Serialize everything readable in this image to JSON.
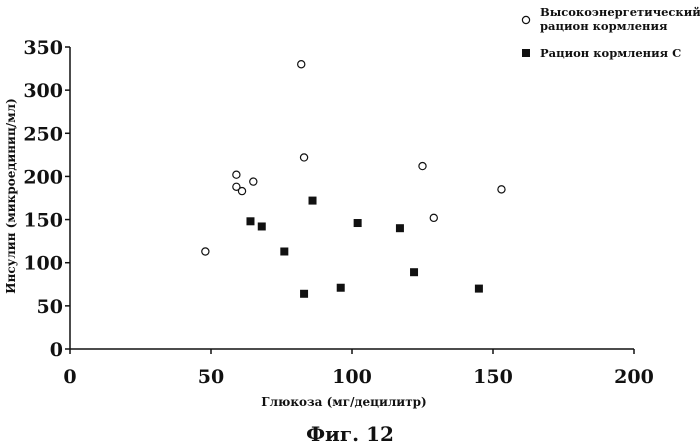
{
  "chart_data": {
    "type": "scatter",
    "xlabel": "Глюкоза (мг/децилитр)",
    "ylabel": "Инсулин (микроединиц/мл)",
    "xlim": [
      0,
      200
    ],
    "ylim": [
      0,
      350
    ],
    "xticks": [
      "0",
      "50",
      "100",
      "150",
      "200"
    ],
    "yticks": [
      "0",
      "50",
      "100",
      "150",
      "200",
      "250",
      "300",
      "350"
    ],
    "xtick_values": [
      0,
      50,
      100,
      150,
      200
    ],
    "ytick_values": [
      0,
      50,
      100,
      150,
      200,
      250,
      300,
      350
    ],
    "grid": false,
    "legend_position": "top-right",
    "caption": "Фиг. 12",
    "series": [
      {
        "name_lines": [
          "Высокоэнергетический",
          "рацион кормления"
        ],
        "marker": "open-circle",
        "points": [
          {
            "x": 48,
            "y": 113
          },
          {
            "x": 59,
            "y": 202
          },
          {
            "x": 59,
            "y": 188
          },
          {
            "x": 61,
            "y": 183
          },
          {
            "x": 65,
            "y": 194
          },
          {
            "x": 82,
            "y": 330
          },
          {
            "x": 83,
            "y": 222
          },
          {
            "x": 125,
            "y": 212
          },
          {
            "x": 129,
            "y": 152
          },
          {
            "x": 153,
            "y": 185
          }
        ]
      },
      {
        "name_lines": [
          "Рацион кормления С"
        ],
        "marker": "filled-square",
        "points": [
          {
            "x": 64,
            "y": 148
          },
          {
            "x": 68,
            "y": 142
          },
          {
            "x": 76,
            "y": 113
          },
          {
            "x": 83,
            "y": 64
          },
          {
            "x": 86,
            "y": 172
          },
          {
            "x": 96,
            "y": 71
          },
          {
            "x": 102,
            "y": 146
          },
          {
            "x": 117,
            "y": 140
          },
          {
            "x": 122,
            "y": 89
          },
          {
            "x": 145,
            "y": 70
          }
        ]
      }
    ]
  }
}
